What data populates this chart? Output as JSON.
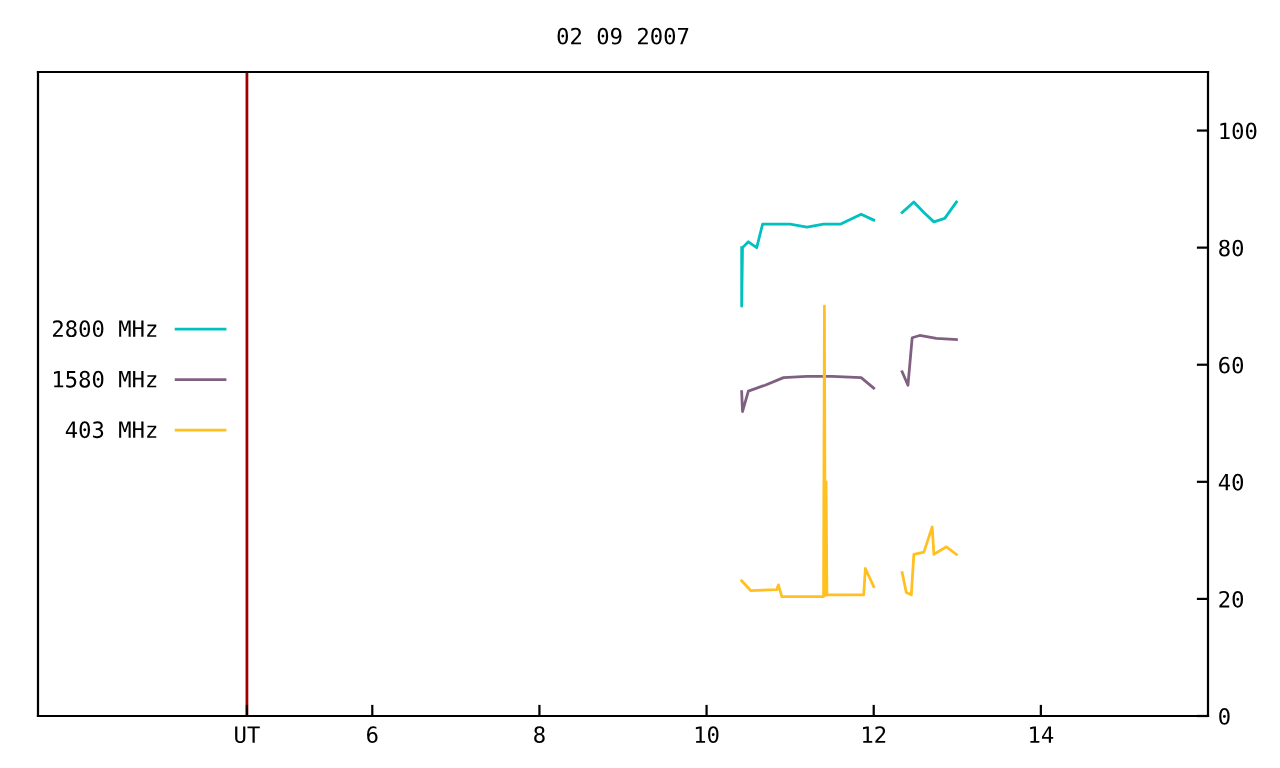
{
  "chart_data": {
    "type": "line",
    "title": "02 09 2007",
    "xlim": [
      2,
      16
    ],
    "xticks": [
      {
        "value": 4.5,
        "label": "UT"
      },
      6,
      8,
      10,
      12,
      14
    ],
    "ylim": [
      0,
      110
    ],
    "yticks": [
      0,
      20,
      40,
      60,
      80,
      100
    ],
    "legend": "left",
    "grid": false,
    "ref_lines": [
      {
        "axis": "x",
        "value": 4.5,
        "color": "#a00000"
      }
    ],
    "series": [
      {
        "name": "2800 MHz",
        "color": "#00c0c0",
        "x": [
          10.42,
          10.42,
          10.43,
          10.5,
          10.6,
          10.67,
          10.8,
          11.0,
          11.2,
          11.4,
          11.6,
          11.85,
          12.0,
          12.17,
          12.34,
          12.48,
          12.6,
          12.72,
          12.85,
          12.99
        ],
        "values": [
          80,
          70,
          80,
          81,
          80,
          84,
          84,
          84,
          83.5,
          84,
          84,
          85.7,
          84.7,
          null,
          86,
          87.8,
          86,
          84.4,
          85,
          87.8
        ]
      },
      {
        "name": "1580 MHz",
        "color": "#806080",
        "x": [
          10.42,
          10.43,
          10.5,
          10.7,
          10.92,
          11.2,
          11.5,
          11.85,
          12.0,
          12.17,
          12.34,
          12.41,
          12.46,
          12.55,
          12.75,
          12.99
        ],
        "values": [
          55.4,
          52,
          55.5,
          56.5,
          57.8,
          58,
          58,
          57.8,
          56,
          null,
          58.8,
          56.5,
          64.6,
          65,
          64.5,
          64.3
        ]
      },
      {
        "name": "403 MHz",
        "color": "#ffc020",
        "x": [
          10.42,
          10.53,
          10.84,
          10.86,
          10.9,
          11.4,
          11.41,
          11.42,
          11.43,
          11.44,
          11.88,
          11.9,
          12.0,
          12.17,
          12.34,
          12.39,
          12.45,
          12.48,
          12.6,
          12.7,
          12.72,
          12.87,
          12.99
        ],
        "values": [
          23.1,
          21.4,
          21.6,
          22.4,
          20.4,
          20.4,
          70,
          20.6,
          40,
          20.7,
          20.7,
          25.2,
          22.1,
          null,
          24.5,
          21.1,
          20.7,
          27.6,
          28,
          32.3,
          27.6,
          28.9,
          27.6
        ]
      }
    ]
  }
}
